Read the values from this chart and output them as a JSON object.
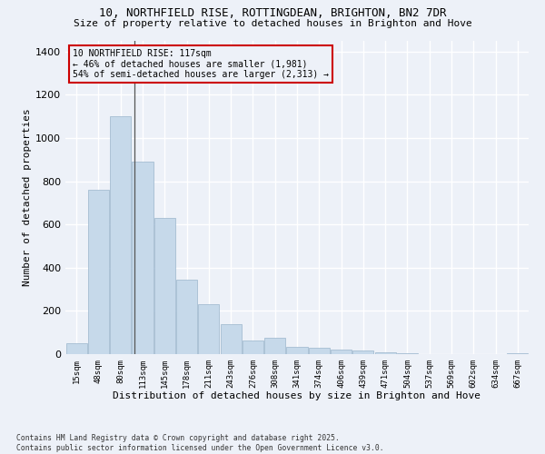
{
  "title_line1": "10, NORTHFIELD RISE, ROTTINGDEAN, BRIGHTON, BN2 7DR",
  "title_line2": "Size of property relative to detached houses in Brighton and Hove",
  "xlabel": "Distribution of detached houses by size in Brighton and Hove",
  "ylabel": "Number of detached properties",
  "categories": [
    "15sqm",
    "48sqm",
    "80sqm",
    "113sqm",
    "145sqm",
    "178sqm",
    "211sqm",
    "243sqm",
    "276sqm",
    "308sqm",
    "341sqm",
    "374sqm",
    "406sqm",
    "439sqm",
    "471sqm",
    "504sqm",
    "537sqm",
    "569sqm",
    "602sqm",
    "634sqm",
    "667sqm"
  ],
  "values": [
    52,
    760,
    1100,
    890,
    630,
    345,
    230,
    140,
    65,
    75,
    35,
    30,
    20,
    15,
    10,
    5,
    2,
    0,
    0,
    0,
    5
  ],
  "bar_color": "#c6d9ea",
  "bar_edgecolor": "#9ab5cc",
  "vline_x": 2.62,
  "annotation_title": "10 NORTHFIELD RISE: 117sqm",
  "annotation_line2": "← 46% of detached houses are smaller (1,981)",
  "annotation_line3": "54% of semi-detached houses are larger (2,313) →",
  "annotation_box_edgecolor": "#cc0000",
  "background_color": "#edf1f8",
  "grid_color": "#ffffff",
  "ylim_max": 1450,
  "yticks": [
    0,
    200,
    400,
    600,
    800,
    1000,
    1200,
    1400
  ],
  "footer1": "Contains HM Land Registry data © Crown copyright and database right 2025.",
  "footer2": "Contains public sector information licensed under the Open Government Licence v3.0."
}
